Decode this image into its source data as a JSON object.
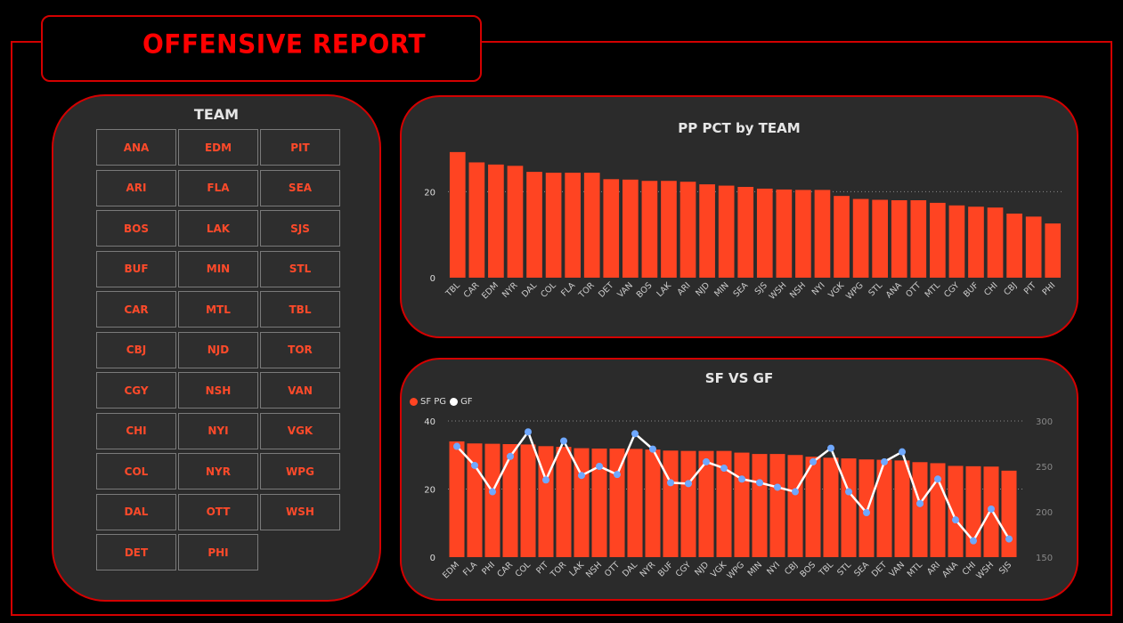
{
  "header": {
    "title": "OFFENSIVE REPORT"
  },
  "colors": {
    "accent_red": "#d40000",
    "bar": "#ff4422",
    "title_red": "#ff0000",
    "gf_line": "#ffffff",
    "gf_marker": "#6fa8ff"
  },
  "slicer": {
    "title": "TEAM",
    "teams": [
      "ANA",
      "EDM",
      "PIT",
      "ARI",
      "FLA",
      "SEA",
      "BOS",
      "LAK",
      "SJS",
      "BUF",
      "MIN",
      "STL",
      "CAR",
      "MTL",
      "TBL",
      "CBJ",
      "NJD",
      "TOR",
      "CGY",
      "NSH",
      "VAN",
      "CHI",
      "NYI",
      "VGK",
      "COL",
      "NYR",
      "WPG",
      "DAL",
      "OTT",
      "WSH",
      "DET",
      "PHI"
    ]
  },
  "pp_chart": {
    "title": "PP PCT by TEAM",
    "chart_data": {
      "type": "bar",
      "title": "PP PCT by TEAM",
      "categories": [
        "TBL",
        "CAR",
        "EDM",
        "NYR",
        "DAL",
        "COL",
        "FLA",
        "TOR",
        "DET",
        "VAN",
        "BOS",
        "LAK",
        "ARI",
        "NJD",
        "MIN",
        "SEA",
        "SJS",
        "WSH",
        "NSH",
        "NYI",
        "VGK",
        "WPG",
        "STL",
        "ANA",
        "OTT",
        "MTL",
        "CGY",
        "BUF",
        "CHI",
        "CBJ",
        "PIT",
        "PHI"
      ],
      "values": [
        29.2,
        26.8,
        26.3,
        26.0,
        24.6,
        24.4,
        24.4,
        24.4,
        22.9,
        22.8,
        22.5,
        22.5,
        22.3,
        21.7,
        21.4,
        21.1,
        20.7,
        20.5,
        20.4,
        20.4,
        19.0,
        18.3,
        18.1,
        18.0,
        18.0,
        17.4,
        16.8,
        16.5,
        16.3,
        14.9,
        14.2,
        12.6
      ],
      "yticks": [
        0,
        20
      ],
      "ylim": [
        0,
        30
      ]
    }
  },
  "sf_chart": {
    "title": "SF VS GF",
    "legend": {
      "sf": "SF PG",
      "gf": "GF"
    },
    "chart_data": {
      "type": "bar+line",
      "title": "SF VS GF",
      "categories": [
        "EDM",
        "FLA",
        "PHI",
        "CAR",
        "COL",
        "PIT",
        "TOR",
        "LAK",
        "NSH",
        "OTT",
        "DAL",
        "NYR",
        "BUF",
        "CGY",
        "NJD",
        "VGK",
        "WPG",
        "MIN",
        "NYI",
        "CBJ",
        "BOS",
        "TBL",
        "STL",
        "SEA",
        "DET",
        "VAN",
        "MTL",
        "ARI",
        "ANA",
        "CHI",
        "WSH",
        "SJS"
      ],
      "series": [
        {
          "name": "SF PG",
          "axis": "left",
          "values": [
            34.0,
            33.4,
            33.3,
            33.2,
            33.1,
            32.6,
            32.4,
            32.0,
            31.9,
            31.9,
            31.8,
            31.6,
            31.3,
            31.2,
            31.2,
            31.2,
            30.7,
            30.3,
            30.3,
            30.0,
            29.5,
            29.2,
            29.0,
            28.7,
            28.6,
            28.4,
            27.9,
            27.6,
            26.8,
            26.7,
            26.6,
            25.4
          ]
        },
        {
          "name": "GF",
          "axis": "right",
          "values": [
            272,
            251,
            222,
            261,
            288,
            235,
            278,
            240,
            250,
            241,
            286,
            269,
            232,
            231,
            255,
            248,
            236,
            232,
            227,
            222,
            255,
            270,
            222,
            199,
            255,
            266,
            209,
            236,
            191,
            168,
            203,
            170
          ]
        }
      ],
      "yticks_left": [
        0,
        20,
        40
      ],
      "ylim_left": [
        0,
        40
      ],
      "yticks_right": [
        150,
        200,
        250,
        300
      ],
      "ylim_right": [
        150,
        300
      ]
    }
  }
}
